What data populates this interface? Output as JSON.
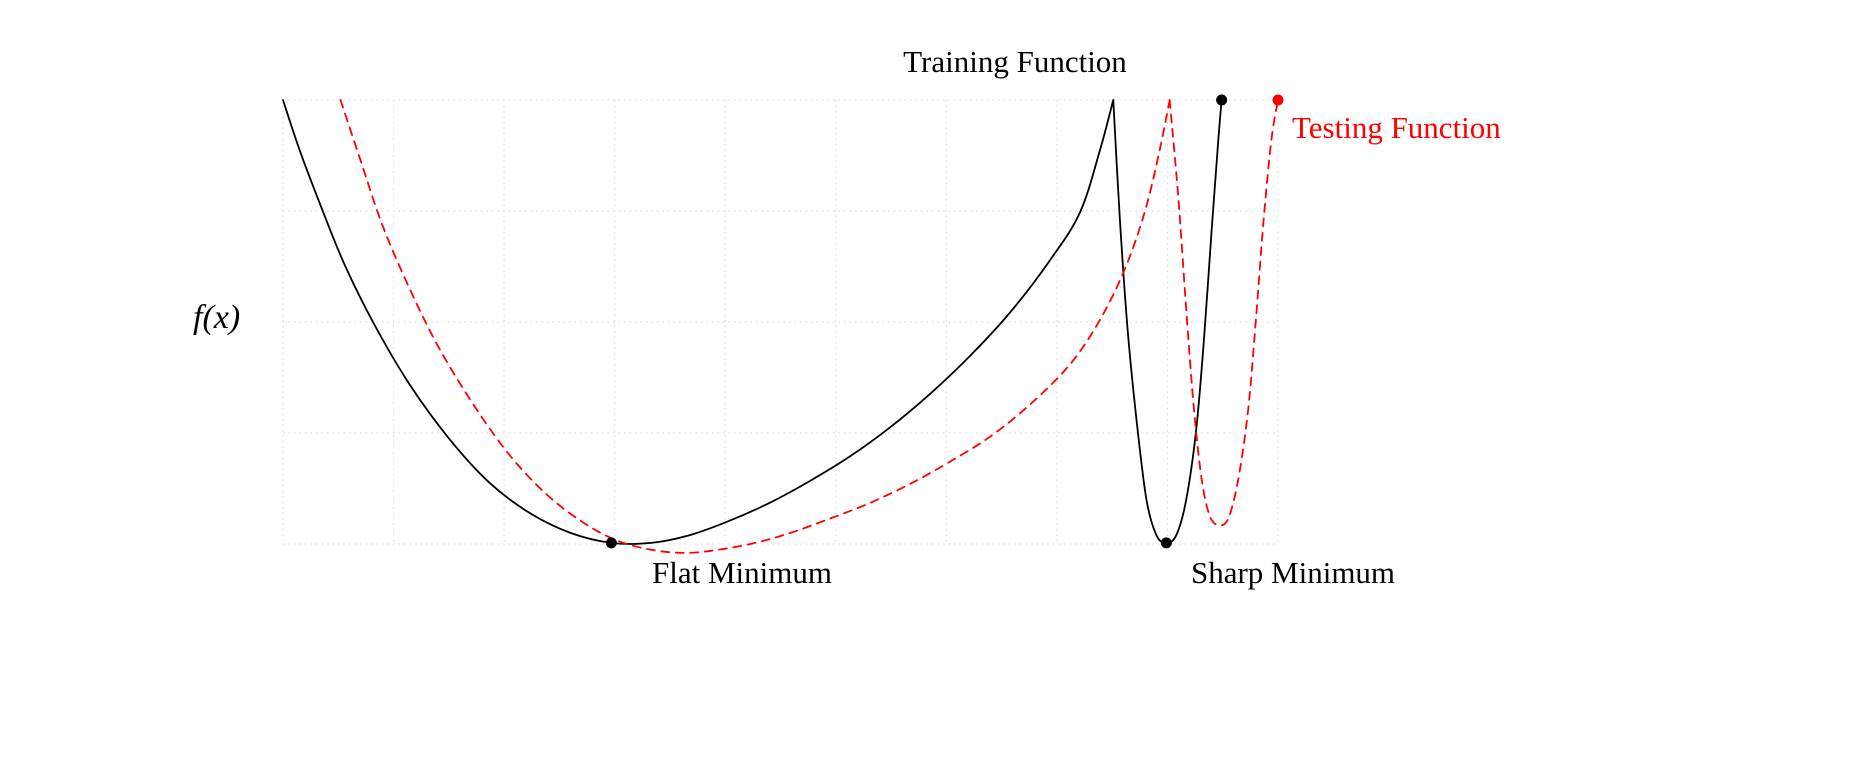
{
  "figure": {
    "background": "#ffffff",
    "colors": {
      "training": "#000000",
      "testing": "#ff0000",
      "grid": "#dedede"
    }
  },
  "chart_data": {
    "type": "line",
    "title": "",
    "xlabel": "",
    "ylabel": "f(x)",
    "x_range": [
      0,
      9
    ],
    "y_range": [
      0,
      4
    ],
    "x_ticks": [],
    "y_ticks": [],
    "grid": {
      "on": true,
      "style": "dotted",
      "color": "#dedede",
      "x_lines": 10,
      "y_lines": 5
    },
    "legend_position": "inline-annotations",
    "series": [
      {
        "id": "training-function",
        "name": "Training Function",
        "color": "#000000",
        "dashed": false,
        "segments": [
          [
            [
              0,
              4
            ],
            [
              0.15,
              3.55
            ],
            [
              0.34,
              3.05
            ],
            [
              0.56,
              2.51
            ],
            [
              0.83,
              1.97
            ],
            [
              1.15,
              1.43
            ],
            [
              1.51,
              0.94
            ],
            [
              1.87,
              0.55
            ],
            [
              2.23,
              0.28
            ],
            [
              2.6,
              0.1
            ],
            [
              2.97,
              0.01
            ],
            [
              3.33,
              0.01
            ],
            [
              3.68,
              0.08
            ],
            [
              4.04,
              0.21
            ],
            [
              4.4,
              0.37
            ],
            [
              4.77,
              0.57
            ],
            [
              5.13,
              0.79
            ],
            [
              5.49,
              1.05
            ],
            [
              5.85,
              1.35
            ],
            [
              6.21,
              1.69
            ],
            [
              6.58,
              2.09
            ],
            [
              6.94,
              2.56
            ],
            [
              7.21,
              2.99
            ],
            [
              7.39,
              3.55
            ],
            [
              7.51,
              4
            ]
          ],
          [
            [
              7.51,
              4
            ],
            [
              7.57,
              2.92
            ],
            [
              7.64,
              1.93
            ],
            [
              7.72,
              1.12
            ],
            [
              7.81,
              0.4
            ],
            [
              7.9,
              0.08
            ],
            [
              7.99,
              0.01
            ],
            [
              8.08,
              0.08
            ],
            [
              8.17,
              0.4
            ],
            [
              8.26,
              1.03
            ],
            [
              8.33,
              1.84
            ],
            [
              8.4,
              2.83
            ],
            [
              8.46,
              3.64
            ],
            [
              8.49,
              4
            ]
          ]
        ]
      },
      {
        "id": "testing-function",
        "name": "Testing Function",
        "color": "#ff0000",
        "dashed": true,
        "segments": [
          [
            [
              0.52,
              4
            ],
            [
              0.7,
              3.46
            ],
            [
              0.9,
              2.87
            ],
            [
              1.15,
              2.29
            ],
            [
              1.42,
              1.75
            ],
            [
              1.74,
              1.23
            ],
            [
              2.05,
              0.8
            ],
            [
              2.37,
              0.46
            ],
            [
              2.69,
              0.21
            ],
            [
              3,
              0.04
            ],
            [
              3.32,
              -0.05
            ],
            [
              3.64,
              -0.08
            ],
            [
              3.95,
              -0.05
            ],
            [
              4.27,
              0.01
            ],
            [
              4.59,
              0.1
            ],
            [
              4.95,
              0.23
            ],
            [
              5.31,
              0.37
            ],
            [
              5.67,
              0.54
            ],
            [
              6.03,
              0.74
            ],
            [
              6.4,
              0.97
            ],
            [
              6.76,
              1.26
            ],
            [
              7.12,
              1.62
            ],
            [
              7.39,
              2.02
            ],
            [
              7.62,
              2.49
            ],
            [
              7.8,
              3.01
            ],
            [
              7.93,
              3.55
            ],
            [
              8.02,
              4
            ]
          ],
          [
            [
              8.02,
              4
            ],
            [
              8.1,
              3.1
            ],
            [
              8.17,
              2.11
            ],
            [
              8.24,
              1.21
            ],
            [
              8.31,
              0.58
            ],
            [
              8.38,
              0.26
            ],
            [
              8.46,
              0.17
            ],
            [
              8.55,
              0.23
            ],
            [
              8.64,
              0.58
            ],
            [
              8.73,
              1.21
            ],
            [
              8.8,
              2.02
            ],
            [
              8.87,
              2.92
            ],
            [
              8.94,
              3.64
            ],
            [
              9,
              4
            ]
          ]
        ]
      }
    ],
    "markers": [
      {
        "name": "flat-minimum-point",
        "x": 2.97,
        "y": 0.01,
        "color": "#000000"
      },
      {
        "name": "sharp-minimum-point",
        "x": 7.99,
        "y": 0.01,
        "color": "#000000"
      },
      {
        "name": "training-function-endpoint",
        "x": 8.49,
        "y": 4,
        "color": "#000000"
      },
      {
        "name": "testing-function-endpoint",
        "x": 9,
        "y": 4,
        "color": "#ff0000"
      }
    ],
    "annotations": [
      {
        "text": "Flat Minimum",
        "target": "flat-minimum-point",
        "position": "below"
      },
      {
        "text": "Sharp Minimum",
        "target": "sharp-minimum-point",
        "position": "below"
      }
    ]
  }
}
